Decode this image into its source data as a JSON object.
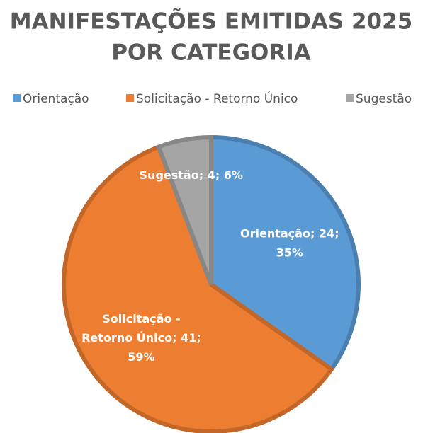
{
  "chart_data": {
    "type": "pie",
    "title": [
      "MANIFESTAÇÕES EMITIDAS 2025",
      "POR CATEGORIA"
    ],
    "categories": [
      "Orientação",
      "Solicitação - Retorno Único",
      "Sugestão"
    ],
    "values": [
      24,
      41,
      4
    ],
    "value_labels": [
      [
        "Orientação; 24;",
        "35%"
      ],
      [
        "Solicitação -",
        "Retorno Único; 41;",
        "59%"
      ],
      [
        "Sugestão; 4; 6%"
      ]
    ],
    "colors": [
      "#5b9bd5",
      "#ed7d31",
      "#a5a5a5"
    ],
    "legend": "top"
  }
}
